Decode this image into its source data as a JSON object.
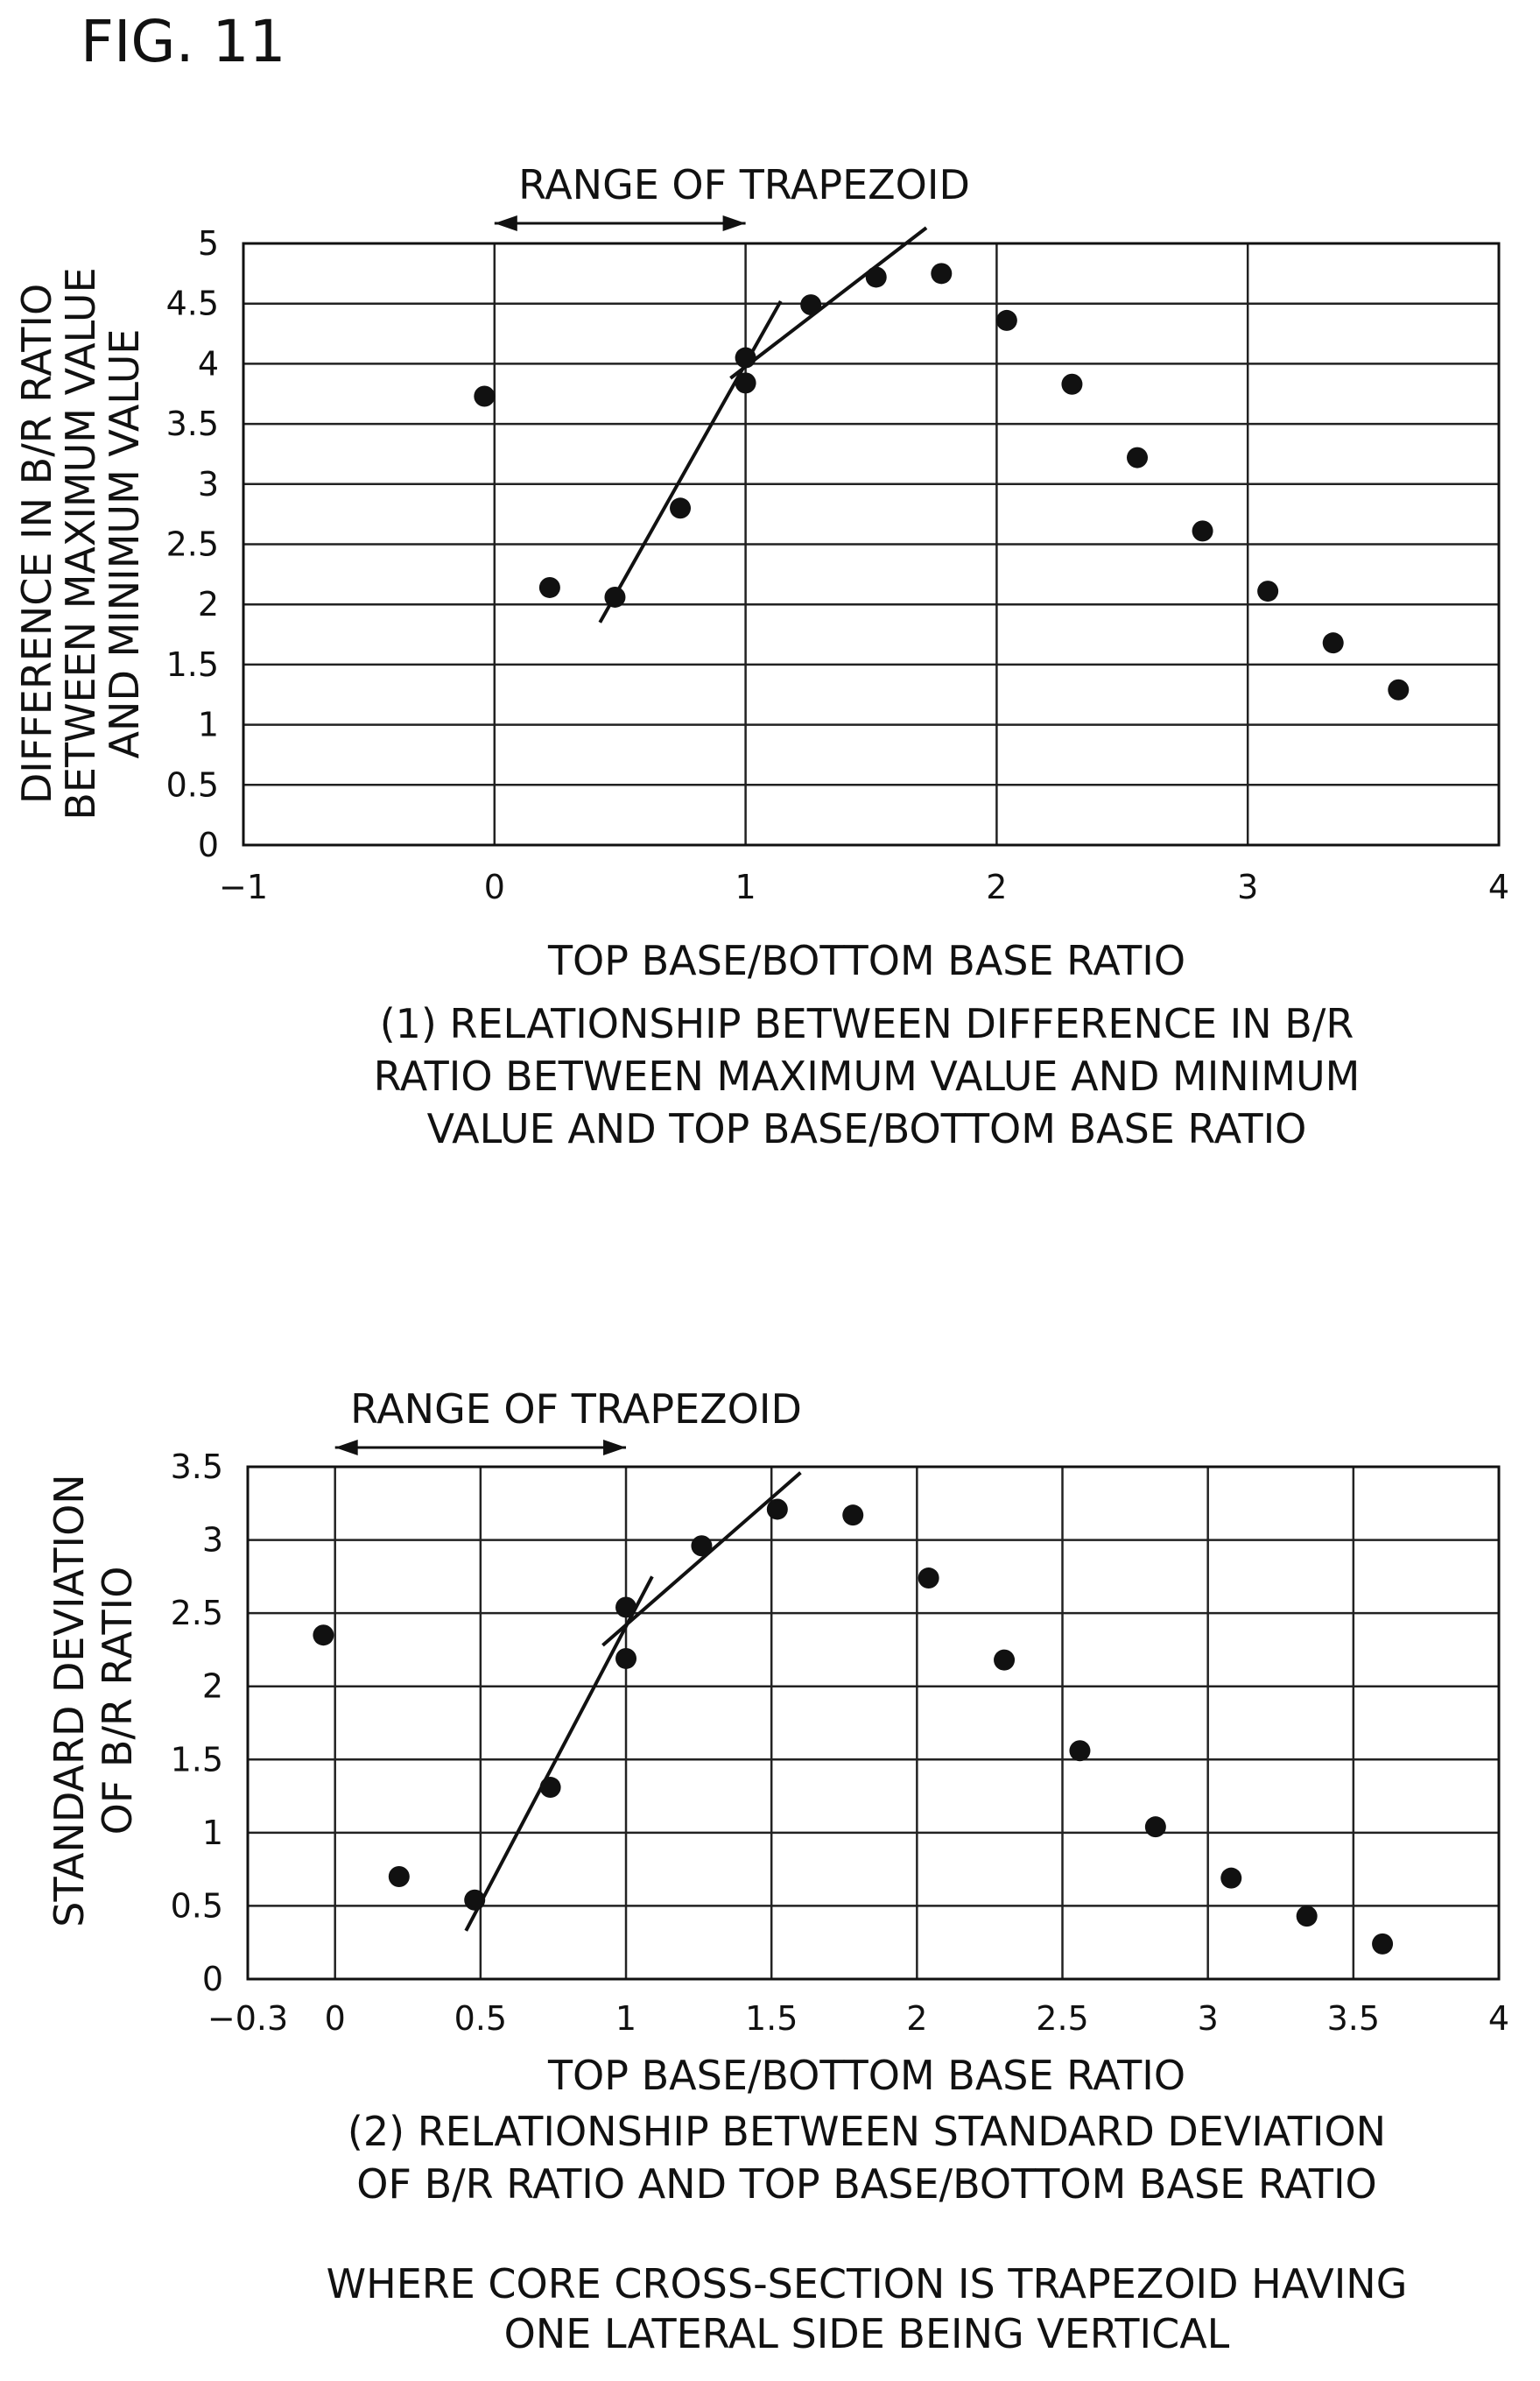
{
  "figure_label": "FIG. 11",
  "chart_data": [
    {
      "type": "scatter",
      "annotation": "RANGE OF TRAPEZOID",
      "xlabel": "TOP BASE/BOTTOM BASE RATIO",
      "ylabel_lines": [
        "DIFFERENCE IN B/R RATIO",
        "BETWEEN MAXIMUM VALUE",
        "AND MINIMUM VALUE"
      ],
      "caption_lines": [
        "(1) RELATIONSHIP BETWEEN DIFFERENCE IN B/R",
        "RATIO BETWEEN MAXIMUM VALUE AND MINIMUM",
        "VALUE AND TOP BASE/BOTTOM BASE RATIO"
      ],
      "xlim": [
        -1,
        4
      ],
      "ylim": [
        0,
        5
      ],
      "x_grid": [
        -1,
        0,
        1,
        2,
        3,
        4
      ],
      "y_grid": [
        0,
        0.5,
        1,
        1.5,
        2,
        2.5,
        3,
        3.5,
        4,
        4.5,
        5
      ],
      "x_tick_labels": [
        "−1",
        "0",
        "1",
        "2",
        "3",
        "4"
      ],
      "y_tick_labels": [
        "0",
        "0.5",
        "1",
        "1.5",
        "2",
        "2.5",
        "3",
        "3.5",
        "4",
        "4.5",
        "5"
      ],
      "grid": true,
      "range_arrow": [
        0,
        1
      ],
      "points": [
        {
          "x": -0.04,
          "y": 3.73
        },
        {
          "x": 0.22,
          "y": 2.14
        },
        {
          "x": 0.48,
          "y": 2.06
        },
        {
          "x": 0.74,
          "y": 2.8
        },
        {
          "x": 1.0,
          "y": 4.05
        },
        {
          "x": 1.0,
          "y": 3.84
        },
        {
          "x": 1.26,
          "y": 4.49
        },
        {
          "x": 1.52,
          "y": 4.72
        },
        {
          "x": 1.78,
          "y": 4.75
        },
        {
          "x": 2.04,
          "y": 4.36
        },
        {
          "x": 2.3,
          "y": 3.83
        },
        {
          "x": 2.56,
          "y": 3.22
        },
        {
          "x": 2.82,
          "y": 2.61
        },
        {
          "x": 3.08,
          "y": 2.11
        },
        {
          "x": 3.34,
          "y": 1.68
        },
        {
          "x": 3.6,
          "y": 1.29
        }
      ],
      "fit_lines": [
        [
          {
            "x": 0.42,
            "y": 1.85
          },
          {
            "x": 1.14,
            "y": 4.52
          }
        ],
        [
          {
            "x": 0.94,
            "y": 3.88
          },
          {
            "x": 1.72,
            "y": 5.13
          }
        ]
      ]
    },
    {
      "type": "scatter",
      "annotation": "RANGE OF TRAPEZOID",
      "xlabel": "TOP BASE/BOTTOM BASE RATIO",
      "ylabel_lines": [
        "STANDARD DEVIATION",
        "OF B/R RATIO"
      ],
      "caption_lines": [
        "(2) RELATIONSHIP BETWEEN STANDARD DEVIATION",
        "OF B/R RATIO AND TOP BASE/BOTTOM BASE RATIO"
      ],
      "xlim": [
        -0.3,
        4
      ],
      "ylim": [
        0,
        3.5
      ],
      "x_grid": [
        0,
        0.5,
        1,
        1.5,
        2,
        2.5,
        3,
        3.5,
        4
      ],
      "y_grid": [
        0,
        0.5,
        1,
        1.5,
        2,
        2.5,
        3,
        3.5
      ],
      "x_tick_values": [
        -0.3,
        0,
        0.5,
        1,
        1.5,
        2,
        2.5,
        3,
        3.5,
        4
      ],
      "x_tick_labels": [
        "−0.3",
        "0",
        "0.5",
        "1",
        "1.5",
        "2",
        "2.5",
        "3",
        "3.5",
        "4"
      ],
      "y_tick_labels": [
        "0",
        "0.5",
        "1",
        "1.5",
        "2",
        "2.5",
        "3",
        "3.5"
      ],
      "grid": true,
      "range_arrow": [
        0,
        1
      ],
      "points": [
        {
          "x": -0.04,
          "y": 2.35
        },
        {
          "x": 0.22,
          "y": 0.7
        },
        {
          "x": 0.48,
          "y": 0.54
        },
        {
          "x": 0.74,
          "y": 1.31
        },
        {
          "x": 1.0,
          "y": 2.54
        },
        {
          "x": 1.0,
          "y": 2.19
        },
        {
          "x": 1.26,
          "y": 2.96
        },
        {
          "x": 1.52,
          "y": 3.21
        },
        {
          "x": 1.78,
          "y": 3.17
        },
        {
          "x": 2.04,
          "y": 2.74
        },
        {
          "x": 2.3,
          "y": 2.18
        },
        {
          "x": 2.56,
          "y": 1.56
        },
        {
          "x": 2.82,
          "y": 1.04
        },
        {
          "x": 3.08,
          "y": 0.69
        },
        {
          "x": 3.34,
          "y": 0.43
        },
        {
          "x": 3.6,
          "y": 0.24
        }
      ],
      "fit_lines": [
        [
          {
            "x": 0.45,
            "y": 0.33
          },
          {
            "x": 1.09,
            "y": 2.75
          }
        ],
        [
          {
            "x": 0.92,
            "y": 2.28
          },
          {
            "x": 1.6,
            "y": 3.46
          }
        ]
      ]
    }
  ],
  "footer_lines": [
    "WHERE CORE CROSS-SECTION IS TRAPEZOID HAVING",
    "ONE LATERAL SIDE BEING VERTICAL"
  ]
}
